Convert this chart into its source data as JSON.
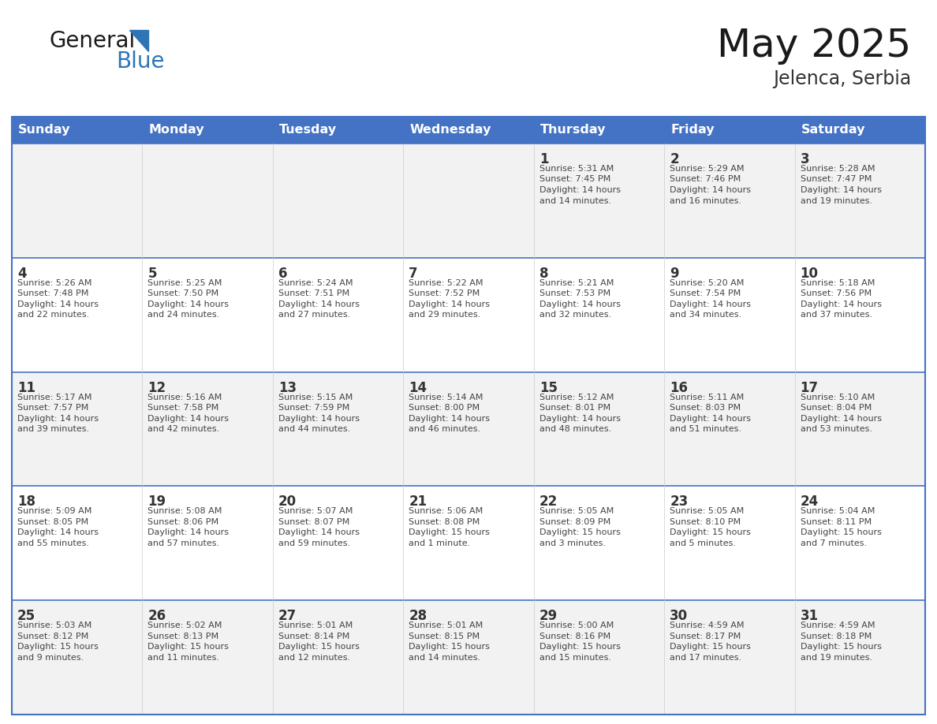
{
  "title": "May 2025",
  "subtitle": "Jelenca, Serbia",
  "days_of_week": [
    "Sunday",
    "Monday",
    "Tuesday",
    "Wednesday",
    "Thursday",
    "Friday",
    "Saturday"
  ],
  "header_bg": "#4472C4",
  "header_text": "#FFFFFF",
  "cell_bg_odd": "#F2F2F2",
  "cell_bg_even": "#FFFFFF",
  "border_color": "#4472C4",
  "day_num_color": "#333333",
  "text_color": "#444444",
  "logo_general_color": "#1a1a1a",
  "logo_blue_color": "#2E75B6",
  "calendar_data": [
    [
      {
        "day": "",
        "info": ""
      },
      {
        "day": "",
        "info": ""
      },
      {
        "day": "",
        "info": ""
      },
      {
        "day": "",
        "info": ""
      },
      {
        "day": "1",
        "info": "Sunrise: 5:31 AM\nSunset: 7:45 PM\nDaylight: 14 hours\nand 14 minutes."
      },
      {
        "day": "2",
        "info": "Sunrise: 5:29 AM\nSunset: 7:46 PM\nDaylight: 14 hours\nand 16 minutes."
      },
      {
        "day": "3",
        "info": "Sunrise: 5:28 AM\nSunset: 7:47 PM\nDaylight: 14 hours\nand 19 minutes."
      }
    ],
    [
      {
        "day": "4",
        "info": "Sunrise: 5:26 AM\nSunset: 7:48 PM\nDaylight: 14 hours\nand 22 minutes."
      },
      {
        "day": "5",
        "info": "Sunrise: 5:25 AM\nSunset: 7:50 PM\nDaylight: 14 hours\nand 24 minutes."
      },
      {
        "day": "6",
        "info": "Sunrise: 5:24 AM\nSunset: 7:51 PM\nDaylight: 14 hours\nand 27 minutes."
      },
      {
        "day": "7",
        "info": "Sunrise: 5:22 AM\nSunset: 7:52 PM\nDaylight: 14 hours\nand 29 minutes."
      },
      {
        "day": "8",
        "info": "Sunrise: 5:21 AM\nSunset: 7:53 PM\nDaylight: 14 hours\nand 32 minutes."
      },
      {
        "day": "9",
        "info": "Sunrise: 5:20 AM\nSunset: 7:54 PM\nDaylight: 14 hours\nand 34 minutes."
      },
      {
        "day": "10",
        "info": "Sunrise: 5:18 AM\nSunset: 7:56 PM\nDaylight: 14 hours\nand 37 minutes."
      }
    ],
    [
      {
        "day": "11",
        "info": "Sunrise: 5:17 AM\nSunset: 7:57 PM\nDaylight: 14 hours\nand 39 minutes."
      },
      {
        "day": "12",
        "info": "Sunrise: 5:16 AM\nSunset: 7:58 PM\nDaylight: 14 hours\nand 42 minutes."
      },
      {
        "day": "13",
        "info": "Sunrise: 5:15 AM\nSunset: 7:59 PM\nDaylight: 14 hours\nand 44 minutes."
      },
      {
        "day": "14",
        "info": "Sunrise: 5:14 AM\nSunset: 8:00 PM\nDaylight: 14 hours\nand 46 minutes."
      },
      {
        "day": "15",
        "info": "Sunrise: 5:12 AM\nSunset: 8:01 PM\nDaylight: 14 hours\nand 48 minutes."
      },
      {
        "day": "16",
        "info": "Sunrise: 5:11 AM\nSunset: 8:03 PM\nDaylight: 14 hours\nand 51 minutes."
      },
      {
        "day": "17",
        "info": "Sunrise: 5:10 AM\nSunset: 8:04 PM\nDaylight: 14 hours\nand 53 minutes."
      }
    ],
    [
      {
        "day": "18",
        "info": "Sunrise: 5:09 AM\nSunset: 8:05 PM\nDaylight: 14 hours\nand 55 minutes."
      },
      {
        "day": "19",
        "info": "Sunrise: 5:08 AM\nSunset: 8:06 PM\nDaylight: 14 hours\nand 57 minutes."
      },
      {
        "day": "20",
        "info": "Sunrise: 5:07 AM\nSunset: 8:07 PM\nDaylight: 14 hours\nand 59 minutes."
      },
      {
        "day": "21",
        "info": "Sunrise: 5:06 AM\nSunset: 8:08 PM\nDaylight: 15 hours\nand 1 minute."
      },
      {
        "day": "22",
        "info": "Sunrise: 5:05 AM\nSunset: 8:09 PM\nDaylight: 15 hours\nand 3 minutes."
      },
      {
        "day": "23",
        "info": "Sunrise: 5:05 AM\nSunset: 8:10 PM\nDaylight: 15 hours\nand 5 minutes."
      },
      {
        "day": "24",
        "info": "Sunrise: 5:04 AM\nSunset: 8:11 PM\nDaylight: 15 hours\nand 7 minutes."
      }
    ],
    [
      {
        "day": "25",
        "info": "Sunrise: 5:03 AM\nSunset: 8:12 PM\nDaylight: 15 hours\nand 9 minutes."
      },
      {
        "day": "26",
        "info": "Sunrise: 5:02 AM\nSunset: 8:13 PM\nDaylight: 15 hours\nand 11 minutes."
      },
      {
        "day": "27",
        "info": "Sunrise: 5:01 AM\nSunset: 8:14 PM\nDaylight: 15 hours\nand 12 minutes."
      },
      {
        "day": "28",
        "info": "Sunrise: 5:01 AM\nSunset: 8:15 PM\nDaylight: 15 hours\nand 14 minutes."
      },
      {
        "day": "29",
        "info": "Sunrise: 5:00 AM\nSunset: 8:16 PM\nDaylight: 15 hours\nand 15 minutes."
      },
      {
        "day": "30",
        "info": "Sunrise: 4:59 AM\nSunset: 8:17 PM\nDaylight: 15 hours\nand 17 minutes."
      },
      {
        "day": "31",
        "info": "Sunrise: 4:59 AM\nSunset: 8:18 PM\nDaylight: 15 hours\nand 19 minutes."
      }
    ]
  ]
}
